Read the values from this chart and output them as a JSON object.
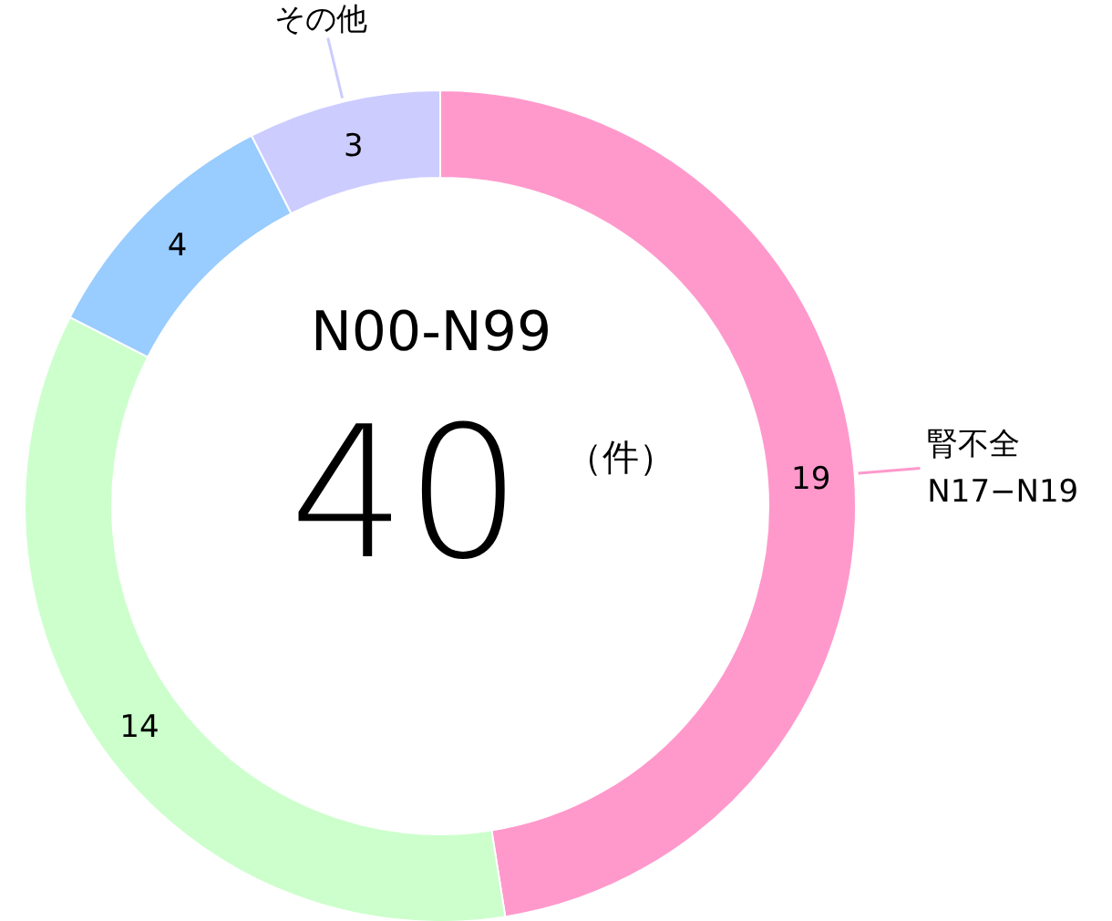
{
  "chart_data": {
    "type": "donut",
    "categories": [
      "腎不全\nN17−N19",
      null,
      null,
      "その他"
    ],
    "values": [
      19,
      14,
      4,
      3
    ],
    "colors": [
      "#ff99cc",
      "#ccffcc",
      "#99ccff",
      "#ccccff"
    ],
    "data_labels": true,
    "annotations": [
      "N00-N99",
      "40",
      "（件）"
    ]
  }
}
